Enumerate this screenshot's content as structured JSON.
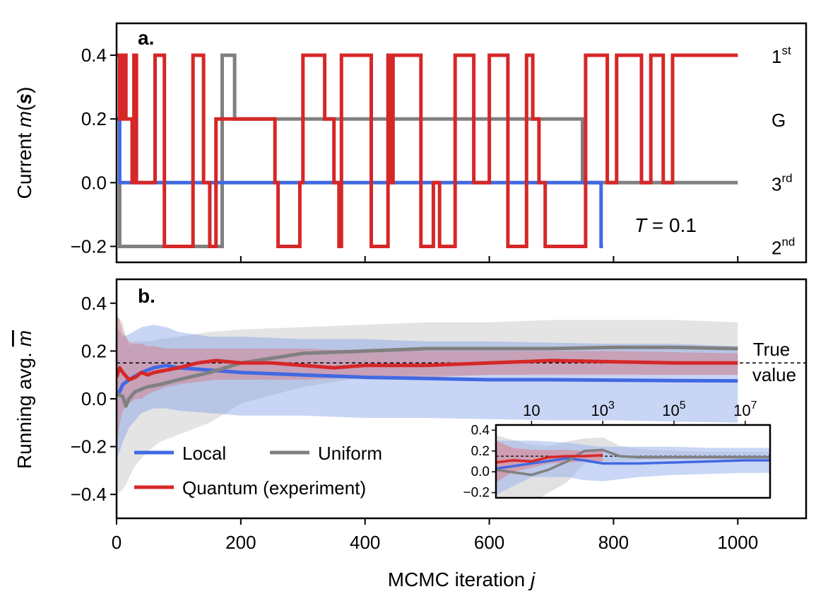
{
  "chart_data": [
    {
      "panel": "a.",
      "type": "line",
      "title": "",
      "xlabel": "",
      "ylabel": "Current m(s)",
      "ylabel_parts": {
        "prefix": "Current ",
        "var": "m",
        "open": "(",
        "bold": "s",
        "close": ")"
      },
      "xlim": [
        0,
        1110
      ],
      "ylim": [
        -0.25,
        0.5
      ],
      "yticks": [
        -0.2,
        0.0,
        0.2,
        0.4
      ],
      "ytick_labels": [
        "−0.2",
        "0.0",
        "0.2",
        "0.4"
      ],
      "xticks": [
        0,
        200,
        400,
        600,
        800,
        1000
      ],
      "annotation": {
        "var": "T",
        "rest": " = 0.1"
      },
      "state_labels": [
        {
          "base": "1",
          "sup": "st",
          "y": 0.4
        },
        {
          "base": "G",
          "sup": "",
          "y": 0.2
        },
        {
          "base": "3",
          "sup": "rd",
          "y": 0.0
        },
        {
          "base": "2",
          "sup": "nd",
          "y": -0.2
        }
      ],
      "series": [
        {
          "name": "Local",
          "color": "#4169E1",
          "points": [
            [
              0,
              0.2
            ],
            [
              5,
              0.2
            ],
            [
              5,
              0.0
            ],
            [
              780,
              0.0
            ],
            [
              780,
              -0.2
            ],
            [
              783,
              -0.2
            ]
          ]
        },
        {
          "name": "Uniform",
          "color": "#808080",
          "points": [
            [
              5,
              0.0
            ],
            [
              5,
              -0.2
            ],
            [
              170,
              -0.2
            ],
            [
              170,
              0.4
            ],
            [
              190,
              0.4
            ],
            [
              190,
              0.2
            ],
            [
              750,
              0.2
            ],
            [
              750,
              0.0
            ],
            [
              1000,
              0.0
            ]
          ]
        },
        {
          "name": "Quantum (experiment)",
          "color": "#D62728",
          "points": [
            [
              0,
              0.4
            ],
            [
              5,
              0.4
            ],
            [
              5,
              0.2
            ],
            [
              10,
              0.2
            ],
            [
              10,
              0.4
            ],
            [
              15,
              0.4
            ],
            [
              15,
              0.2
            ],
            [
              25,
              0.2
            ],
            [
              25,
              0.0
            ],
            [
              28,
              0.0
            ],
            [
              28,
              0.4
            ],
            [
              32,
              0.4
            ],
            [
              32,
              0.0
            ],
            [
              62,
              0.0
            ],
            [
              62,
              0.4
            ],
            [
              77,
              0.4
            ],
            [
              77,
              -0.2
            ],
            [
              123,
              -0.2
            ],
            [
              123,
              0.4
            ],
            [
              140,
              0.4
            ],
            [
              140,
              0.0
            ],
            [
              150,
              0.0
            ],
            [
              150,
              -0.2
            ],
            [
              160,
              -0.2
            ],
            [
              160,
              0.2
            ],
            [
              255,
              0.2
            ],
            [
              255,
              0.0
            ],
            [
              260,
              0.0
            ],
            [
              260,
              -0.2
            ],
            [
              295,
              -0.2
            ],
            [
              295,
              0.0
            ],
            [
              300,
              0.0
            ],
            [
              300,
              0.4
            ],
            [
              335,
              0.4
            ],
            [
              335,
              0.2
            ],
            [
              350,
              0.2
            ],
            [
              350,
              0.0
            ],
            [
              358,
              0.0
            ],
            [
              358,
              -0.2
            ],
            [
              362,
              -0.2
            ],
            [
              362,
              0.4
            ],
            [
              410,
              0.4
            ],
            [
              410,
              -0.2
            ],
            [
              437,
              -0.2
            ],
            [
              437,
              0.4
            ],
            [
              441,
              0.4
            ],
            [
              441,
              0.0
            ],
            [
              445,
              0.0
            ],
            [
              445,
              0.4
            ],
            [
              490,
              0.4
            ],
            [
              490,
              -0.2
            ],
            [
              510,
              -0.2
            ],
            [
              510,
              0.0
            ],
            [
              520,
              0.0
            ],
            [
              520,
              -0.2
            ],
            [
              545,
              -0.2
            ],
            [
              545,
              0.4
            ],
            [
              575,
              0.4
            ],
            [
              575,
              0.0
            ],
            [
              600,
              0.0
            ],
            [
              600,
              0.4
            ],
            [
              630,
              0.4
            ],
            [
              630,
              -0.2
            ],
            [
              660,
              -0.2
            ],
            [
              660,
              0.4
            ],
            [
              670,
              0.4
            ],
            [
              670,
              0.2
            ],
            [
              680,
              0.2
            ],
            [
              680,
              0.0
            ],
            [
              690,
              0.0
            ],
            [
              690,
              -0.2
            ],
            [
              755,
              -0.2
            ],
            [
              755,
              0.4
            ],
            [
              790,
              0.4
            ],
            [
              790,
              0.0
            ],
            [
              805,
              0.0
            ],
            [
              805,
              0.4
            ],
            [
              845,
              0.4
            ],
            [
              845,
              0.0
            ],
            [
              860,
              0.0
            ],
            [
              860,
              0.4
            ],
            [
              880,
              0.4
            ],
            [
              880,
              0.0
            ],
            [
              895,
              0.0
            ],
            [
              895,
              0.4
            ],
            [
              1000,
              0.4
            ]
          ]
        }
      ]
    },
    {
      "panel": "b.",
      "type": "line",
      "title": "",
      "xlabel": "MCMC iteration j",
      "xlabel_parts": {
        "prefix": "MCMC iteration ",
        "var": "j"
      },
      "ylabel": "Running avg. m",
      "ylabel_parts": {
        "prefix": "Running avg. ",
        "var": "m"
      },
      "xlim": [
        0,
        1110
      ],
      "ylim": [
        -0.5,
        0.5
      ],
      "xticks": [
        0,
        200,
        400,
        600,
        800,
        1000
      ],
      "xtick_labels": [
        "0",
        "200",
        "400",
        "600",
        "800",
        "1000"
      ],
      "yticks": [
        -0.4,
        -0.2,
        0.0,
        0.2,
        0.4
      ],
      "ytick_labels": [
        "−0.4",
        "−0.2",
        "0.0",
        "0.2",
        "0.4"
      ],
      "true_value": 0.15,
      "true_value_label": [
        "True",
        "value"
      ],
      "legend": {
        "placement": "lower-left",
        "entries": [
          "Local",
          "Uniform",
          "Quantum (experiment)"
        ]
      },
      "series": [
        {
          "name": "Local",
          "color": "#4169E1",
          "band_color": "#7B9BE8",
          "x": [
            0,
            5,
            10,
            20,
            40,
            60,
            80,
            100,
            150,
            200,
            300,
            400,
            500,
            600,
            700,
            800,
            900,
            1000
          ],
          "mean": [
            0.02,
            0.03,
            0.06,
            0.08,
            0.11,
            0.13,
            0.14,
            0.13,
            0.12,
            0.11,
            0.1,
            0.09,
            0.085,
            0.08,
            0.08,
            0.078,
            0.076,
            0.075
          ],
          "lower": [
            -0.25,
            -0.22,
            -0.18,
            -0.12,
            -0.06,
            -0.04,
            -0.04,
            -0.05,
            -0.06,
            -0.07,
            -0.07,
            -0.08,
            -0.08,
            -0.085,
            -0.09,
            -0.09,
            -0.095,
            -0.1
          ],
          "upper": [
            0.3,
            0.28,
            0.26,
            0.27,
            0.3,
            0.31,
            0.3,
            0.28,
            0.26,
            0.26,
            0.25,
            0.25,
            0.24,
            0.24,
            0.235,
            0.23,
            0.23,
            0.22
          ]
        },
        {
          "name": "Uniform",
          "color": "#808080",
          "band_color": "#BEBEBE",
          "x": [
            0,
            10,
            15,
            20,
            30,
            50,
            70,
            100,
            150,
            200,
            300,
            400,
            500,
            600,
            700,
            800,
            900,
            1000
          ],
          "mean": [
            0.02,
            0.01,
            -0.03,
            0.0,
            0.03,
            0.05,
            0.06,
            0.08,
            0.11,
            0.15,
            0.19,
            0.2,
            0.21,
            0.21,
            0.21,
            0.215,
            0.215,
            0.21
          ],
          "lower": [
            -0.4,
            -0.38,
            -0.36,
            -0.33,
            -0.28,
            -0.22,
            -0.18,
            -0.15,
            -0.1,
            -0.02,
            0.05,
            0.09,
            0.1,
            0.1,
            0.105,
            0.105,
            0.1,
            0.1
          ],
          "upper": [
            0.35,
            0.32,
            0.26,
            0.22,
            0.24,
            0.24,
            0.25,
            0.26,
            0.28,
            0.29,
            0.3,
            0.31,
            0.32,
            0.32,
            0.33,
            0.33,
            0.33,
            0.32
          ]
        },
        {
          "name": "Quantum (experiment)",
          "color": "#D62728",
          "band_color": "#D9707A",
          "x": [
            0,
            5,
            10,
            20,
            30,
            40,
            50,
            60,
            80,
            100,
            130,
            160,
            200,
            250,
            300,
            350,
            400,
            500,
            600,
            700,
            800,
            900,
            1000
          ],
          "mean": [
            0.09,
            0.13,
            0.11,
            0.08,
            0.09,
            0.11,
            0.1,
            0.11,
            0.12,
            0.13,
            0.15,
            0.16,
            0.15,
            0.15,
            0.14,
            0.13,
            0.14,
            0.14,
            0.15,
            0.16,
            0.155,
            0.15,
            0.15
          ],
          "lower": [
            -0.2,
            -0.1,
            -0.05,
            -0.02,
            0.0,
            0.0,
            0.02,
            0.03,
            0.05,
            0.06,
            0.07,
            0.08,
            0.08,
            0.08,
            0.08,
            0.085,
            0.09,
            0.09,
            0.1,
            0.1,
            0.1,
            0.1,
            0.1
          ],
          "upper": [
            0.35,
            0.33,
            0.28,
            0.24,
            0.23,
            0.23,
            0.22,
            0.22,
            0.21,
            0.21,
            0.21,
            0.21,
            0.21,
            0.21,
            0.21,
            0.205,
            0.205,
            0.2,
            0.2,
            0.2,
            0.2,
            0.195,
            0.19
          ]
        }
      ]
    },
    {
      "panel": "inset",
      "type": "line",
      "xscale": "log",
      "xlim": [
        1,
        50000000
      ],
      "ylim": [
        -0.25,
        0.45
      ],
      "xticks": [
        10,
        1000,
        100000,
        10000000
      ],
      "xtick_labels": [
        {
          "base": "10",
          "sup": ""
        },
        {
          "base": "10",
          "sup": "3"
        },
        {
          "base": "10",
          "sup": "5"
        },
        {
          "base": "10",
          "sup": "7"
        }
      ],
      "yticks": [
        -0.2,
        0.0,
        0.2,
        0.4
      ],
      "ytick_labels": [
        "−0.2",
        "0.0",
        "0.2",
        "0.4"
      ],
      "true_value": 0.15,
      "series": [
        {
          "name": "Local",
          "color": "#4169E1",
          "band_color": "#9DB4EF",
          "x": [
            1,
            10,
            100,
            300,
            1000,
            10000,
            100000,
            1000000,
            10000000,
            50000000
          ],
          "mean": [
            0.03,
            0.08,
            0.13,
            0.11,
            0.08,
            0.08,
            0.09,
            0.1,
            0.11,
            0.11
          ],
          "lower": [
            -0.22,
            -0.05,
            -0.05,
            -0.08,
            -0.09,
            -0.05,
            -0.03,
            -0.02,
            -0.01,
            -0.01
          ],
          "upper": [
            0.3,
            0.3,
            0.28,
            0.26,
            0.24,
            0.24,
            0.24,
            0.23,
            0.23,
            0.23
          ]
        },
        {
          "name": "Uniform",
          "color": "#808080",
          "band_color": "#C8C8C8",
          "x": [
            1,
            10,
            30,
            100,
            300,
            1000,
            3000,
            10000,
            100000,
            1000000,
            10000000,
            50000000
          ],
          "mean": [
            0.02,
            -0.03,
            0.02,
            0.1,
            0.2,
            0.21,
            0.15,
            0.14,
            0.14,
            0.14,
            0.14,
            0.14
          ],
          "lower": [
            -0.35,
            -0.3,
            -0.2,
            -0.1,
            0.08,
            0.1,
            0.1,
            0.11,
            0.12,
            0.12,
            0.12,
            0.12
          ],
          "upper": [
            0.35,
            0.26,
            0.25,
            0.29,
            0.32,
            0.33,
            0.25,
            0.22,
            0.2,
            0.19,
            0.19,
            0.19
          ]
        },
        {
          "name": "Quantum (experiment)",
          "color": "#D62728",
          "band_color": "#E07C86",
          "x": [
            1,
            3,
            10,
            30,
            100,
            300,
            1000
          ],
          "mean": [
            0.09,
            0.11,
            0.1,
            0.14,
            0.15,
            0.15,
            0.16
          ],
          "lower": [
            -0.1,
            0.0,
            0.04,
            0.08,
            0.09,
            0.1,
            0.1
          ],
          "upper": [
            0.3,
            0.23,
            0.21,
            0.21,
            0.21,
            0.2,
            0.2
          ]
        }
      ]
    }
  ]
}
